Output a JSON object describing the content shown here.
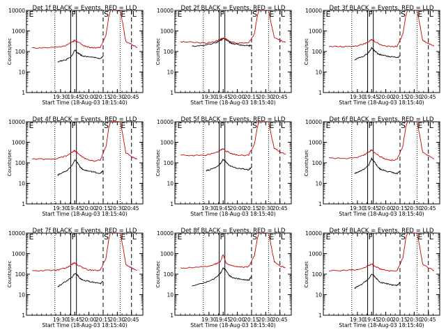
{
  "page": {
    "background": "#ffffff",
    "foreground": "#000000"
  },
  "colors": {
    "events": "#000000",
    "lld": "#cc0000",
    "axes": "#000000"
  },
  "shared": {
    "ylabel": "Counts/sec",
    "xlabel": "Start Time (18-Aug-03 18:15:40)",
    "xticks": [
      "19:30",
      "19:45",
      "20:00",
      "20:15",
      "20:30",
      "20:45"
    ],
    "yticks": [
      "1",
      "10",
      "100",
      "1000",
      "10000"
    ],
    "markers": [
      "E",
      "F",
      "S",
      "E",
      "L"
    ]
  },
  "chart_data": [
    {
      "type": "line",
      "title": "Det 1f BLACK = Events, RED = LLD",
      "xlabel": "Start Time (18-Aug-03 18:15:40)",
      "ylabel": "Counts/sec",
      "yscale": "log",
      "ylim": [
        1,
        10000
      ],
      "xticks": [
        "19:30",
        "19:45",
        "20:00",
        "20:15",
        "20:30",
        "20:45"
      ],
      "series": [
        {
          "name": "Events",
          "color": "#000000",
          "x": [
            19.45,
            19.5,
            19.6,
            19.7,
            19.75,
            19.8,
            19.85,
            19.9,
            20.0,
            20.1,
            20.2,
            20.25
          ],
          "y": [
            30,
            35,
            40,
            60,
            120,
            90,
            70,
            60,
            55,
            50,
            45,
            55
          ]
        },
        {
          "name": "LLD",
          "color": "#cc0000",
          "x": [
            19.0,
            19.2,
            19.45,
            19.6,
            19.7,
            19.75,
            19.8,
            19.9,
            20.0,
            20.1,
            20.2,
            20.3,
            20.35,
            20.38,
            20.55,
            20.6,
            20.65,
            20.75,
            20.85
          ],
          "y": [
            150,
            150,
            160,
            200,
            280,
            350,
            300,
            200,
            160,
            150,
            160,
            600,
            5000,
            10000,
            10000,
            2000,
            300,
            220,
            150
          ]
        }
      ]
    },
    {
      "type": "line",
      "title": "Det 2f BLACK = Events, RED = LLD",
      "xlabel": "Start Time (18-Aug-03 18:15:40)",
      "ylabel": "Counts/sec",
      "yscale": "log",
      "ylim": [
        1,
        10000
      ],
      "xticks": [
        "19:30",
        "19:45",
        "20:00",
        "20:15",
        "20:30",
        "20:45"
      ],
      "series": [
        {
          "name": "Events",
          "color": "#000000",
          "x": [
            19.2,
            19.4,
            19.6,
            19.7,
            19.75,
            19.8,
            19.85,
            19.9,
            20.0,
            20.1,
            20.2,
            20.25
          ],
          "y": [
            180,
            200,
            250,
            350,
            420,
            380,
            300,
            250,
            220,
            200,
            190,
            200
          ]
        },
        {
          "name": "LLD",
          "color": "#cc0000",
          "x": [
            19.0,
            19.2,
            19.45,
            19.6,
            19.7,
            19.75,
            19.8,
            19.9,
            20.0,
            20.1,
            20.2,
            20.3,
            20.35,
            20.38,
            20.55,
            20.6,
            20.65,
            20.75,
            20.85
          ],
          "y": [
            300,
            280,
            260,
            300,
            400,
            450,
            400,
            300,
            260,
            250,
            260,
            700,
            5000,
            10000,
            10000,
            2000,
            500,
            350,
            280
          ]
        }
      ]
    },
    {
      "type": "line",
      "title": "Det 3f BLACK = Events, RED = LLD",
      "xlabel": "Start Time (18-Aug-03 18:15:40)",
      "ylabel": "Counts/sec",
      "yscale": "log",
      "ylim": [
        1,
        10000
      ],
      "xticks": [
        "19:30",
        "19:45",
        "20:00",
        "20:15",
        "20:30",
        "20:45"
      ],
      "series": [
        {
          "name": "Events",
          "color": "#000000",
          "x": [
            19.45,
            19.5,
            19.6,
            19.7,
            19.75,
            19.8,
            19.85,
            19.9,
            20.0,
            20.1,
            20.2,
            20.25
          ],
          "y": [
            40,
            45,
            55,
            90,
            150,
            110,
            80,
            70,
            60,
            55,
            50,
            60
          ]
        },
        {
          "name": "LLD",
          "color": "#cc0000",
          "x": [
            19.0,
            19.2,
            19.45,
            19.6,
            19.7,
            19.75,
            19.8,
            19.9,
            20.0,
            20.1,
            20.2,
            20.3,
            20.35,
            20.38,
            20.55,
            20.6,
            20.65,
            20.75,
            20.85
          ],
          "y": [
            180,
            170,
            180,
            220,
            300,
            380,
            320,
            220,
            180,
            170,
            180,
            700,
            5000,
            10000,
            10000,
            2000,
            350,
            250,
            180
          ]
        }
      ]
    },
    {
      "type": "line",
      "title": "Det 4f BLACK = Events, RED = LLD",
      "xlabel": "Start Time (18-Aug-03 18:15:40)",
      "ylabel": "Counts/sec",
      "yscale": "log",
      "ylim": [
        1,
        10000
      ],
      "xticks": [
        "19:30",
        "19:45",
        "20:00",
        "20:15",
        "20:30",
        "20:45"
      ],
      "series": [
        {
          "name": "Events",
          "color": "#000000",
          "x": [
            19.45,
            19.5,
            19.6,
            19.7,
            19.75,
            19.8,
            19.85,
            19.9,
            20.0,
            20.1,
            20.2,
            20.25
          ],
          "y": [
            25,
            30,
            40,
            70,
            140,
            100,
            60,
            45,
            40,
            35,
            30,
            40
          ]
        },
        {
          "name": "LLD",
          "color": "#cc0000",
          "x": [
            19.0,
            19.2,
            19.45,
            19.6,
            19.7,
            19.75,
            19.8,
            19.9,
            20.0,
            20.1,
            20.2,
            20.3,
            20.35,
            20.38,
            20.55,
            20.6,
            20.65,
            20.75,
            20.85
          ],
          "y": [
            160,
            150,
            160,
            220,
            320,
            400,
            300,
            180,
            140,
            120,
            140,
            600,
            5000,
            10000,
            10000,
            2000,
            300,
            200,
            150
          ]
        }
      ]
    },
    {
      "type": "line",
      "title": "Det 5f BLACK = Events, RED = LLD",
      "xlabel": "Start Time (18-Aug-03 18:15:40)",
      "ylabel": "Counts/sec",
      "yscale": "log",
      "ylim": [
        1,
        10000
      ],
      "xticks": [
        "19:30",
        "19:45",
        "20:00",
        "20:15",
        "20:30",
        "20:45"
      ],
      "series": [
        {
          "name": "Events",
          "color": "#000000",
          "x": [
            19.45,
            19.5,
            19.6,
            19.7,
            19.75,
            19.8,
            19.85,
            19.9,
            20.0,
            20.1,
            20.2,
            20.25
          ],
          "y": [
            40,
            45,
            55,
            90,
            150,
            110,
            80,
            65,
            55,
            50,
            45,
            60
          ]
        },
        {
          "name": "LLD",
          "color": "#cc0000",
          "x": [
            19.0,
            19.2,
            19.45,
            19.6,
            19.7,
            19.75,
            19.8,
            19.9,
            20.0,
            20.1,
            20.2,
            20.3,
            20.35,
            20.38,
            20.55,
            20.6,
            20.65,
            20.75,
            20.85
          ],
          "y": [
            240,
            230,
            240,
            300,
            400,
            480,
            380,
            280,
            240,
            230,
            240,
            800,
            5000,
            10000,
            10000,
            2000,
            500,
            350,
            260
          ]
        }
      ]
    },
    {
      "type": "line",
      "title": "Det 6f BLACK = Events, RED = LLD",
      "xlabel": "Start Time (18-Aug-03 18:15:40)",
      "ylabel": "Counts/sec",
      "yscale": "log",
      "ylim": [
        1,
        10000
      ],
      "xticks": [
        "19:30",
        "19:45",
        "20:00",
        "20:15",
        "20:30",
        "20:45"
      ],
      "series": [
        {
          "name": "Events",
          "color": "#000000",
          "x": [
            19.45,
            19.5,
            19.6,
            19.7,
            19.75,
            19.8,
            19.85,
            19.9,
            20.0,
            20.1,
            20.2,
            20.25
          ],
          "y": [
            30,
            35,
            45,
            80,
            160,
            110,
            70,
            50,
            40,
            35,
            30,
            40
          ]
        },
        {
          "name": "LLD",
          "color": "#cc0000",
          "x": [
            19.0,
            19.2,
            19.45,
            19.6,
            19.7,
            19.75,
            19.8,
            19.9,
            20.0,
            20.1,
            20.2,
            20.3,
            20.35,
            20.38,
            20.55,
            20.6,
            20.65,
            20.75,
            20.85
          ],
          "y": [
            170,
            160,
            170,
            230,
            330,
            420,
            320,
            200,
            150,
            130,
            150,
            650,
            5000,
            10000,
            10000,
            2000,
            320,
            220,
            160
          ]
        }
      ]
    },
    {
      "type": "line",
      "title": "Det 7f BLACK = Events, RED = LLD",
      "xlabel": "Start Time (18-Aug-03 18:15:40)",
      "ylabel": "Counts/sec",
      "yscale": "log",
      "ylim": [
        1,
        10000
      ],
      "xticks": [
        "19:30",
        "19:45",
        "20:00",
        "20:15",
        "20:30",
        "20:45"
      ],
      "series": [
        {
          "name": "Events",
          "color": "#000000",
          "x": [
            19.45,
            19.5,
            19.6,
            19.7,
            19.75,
            19.8,
            19.85,
            19.9,
            20.0,
            20.1,
            20.2,
            20.25
          ],
          "y": [
            25,
            30,
            45,
            70,
            110,
            90,
            60,
            50,
            45,
            40,
            35,
            45
          ]
        },
        {
          "name": "LLD",
          "color": "#cc0000",
          "x": [
            19.0,
            19.2,
            19.45,
            19.6,
            19.7,
            19.75,
            19.8,
            19.9,
            20.0,
            20.1,
            20.2,
            20.3,
            20.35,
            20.38,
            20.55,
            20.6,
            20.65,
            20.75,
            20.85
          ],
          "y": [
            150,
            150,
            160,
            200,
            300,
            360,
            280,
            200,
            160,
            150,
            160,
            600,
            5000,
            10000,
            10000,
            2000,
            300,
            200,
            150
          ]
        }
      ]
    },
    {
      "type": "line",
      "title": "Det 8f BLACK = Events, RED = LLD",
      "xlabel": "Start Time (18-Aug-03 18:15:40)",
      "ylabel": "Counts/sec",
      "yscale": "log",
      "ylim": [
        1,
        10000
      ],
      "xticks": [
        "19:30",
        "19:45",
        "20:00",
        "20:15",
        "20:30",
        "20:45"
      ],
      "series": [
        {
          "name": "Events",
          "color": "#000000",
          "x": [
            19.2,
            19.45,
            19.6,
            19.7,
            19.75,
            19.8,
            19.85,
            19.9,
            20.0,
            20.1,
            20.2,
            20.25
          ],
          "y": [
            25,
            40,
            60,
            110,
            200,
            150,
            90,
            70,
            60,
            55,
            50,
            80
          ]
        },
        {
          "name": "LLD",
          "color": "#cc0000",
          "x": [
            19.0,
            19.2,
            19.45,
            19.6,
            19.7,
            19.75,
            19.8,
            19.9,
            20.0,
            20.1,
            20.2,
            20.3,
            20.35,
            20.38,
            20.55,
            20.6,
            20.65,
            20.75,
            20.85
          ],
          "y": [
            200,
            210,
            230,
            300,
            400,
            900,
            350,
            260,
            230,
            220,
            230,
            800,
            5000,
            10000,
            10000,
            2000,
            400,
            250,
            200
          ]
        }
      ]
    },
    {
      "type": "line",
      "title": "Det 9f BLACK = Events, RED = LLD",
      "xlabel": "Start Time (18-Aug-03 18:15:40)",
      "ylabel": "Counts/sec",
      "yscale": "log",
      "ylim": [
        1,
        10000
      ],
      "xticks": [
        "19:30",
        "19:45",
        "20:00",
        "20:15",
        "20:30",
        "20:45"
      ],
      "series": [
        {
          "name": "Events",
          "color": "#000000",
          "x": [
            19.45,
            19.5,
            19.6,
            19.7,
            19.75,
            19.8,
            19.85,
            19.9,
            20.0,
            20.1,
            20.2,
            20.25
          ],
          "y": [
            20,
            25,
            35,
            60,
            100,
            80,
            55,
            40,
            35,
            30,
            28,
            40
          ]
        },
        {
          "name": "LLD",
          "color": "#cc0000",
          "x": [
            19.0,
            19.2,
            19.45,
            19.6,
            19.7,
            19.75,
            19.8,
            19.9,
            20.0,
            20.1,
            20.2,
            20.3,
            20.35,
            20.38,
            20.55,
            20.6,
            20.65,
            20.75,
            20.85
          ],
          "y": [
            150,
            150,
            160,
            200,
            260,
            320,
            250,
            180,
            150,
            140,
            150,
            600,
            5000,
            10000,
            10000,
            2000,
            300,
            200,
            150
          ]
        }
      ]
    }
  ]
}
